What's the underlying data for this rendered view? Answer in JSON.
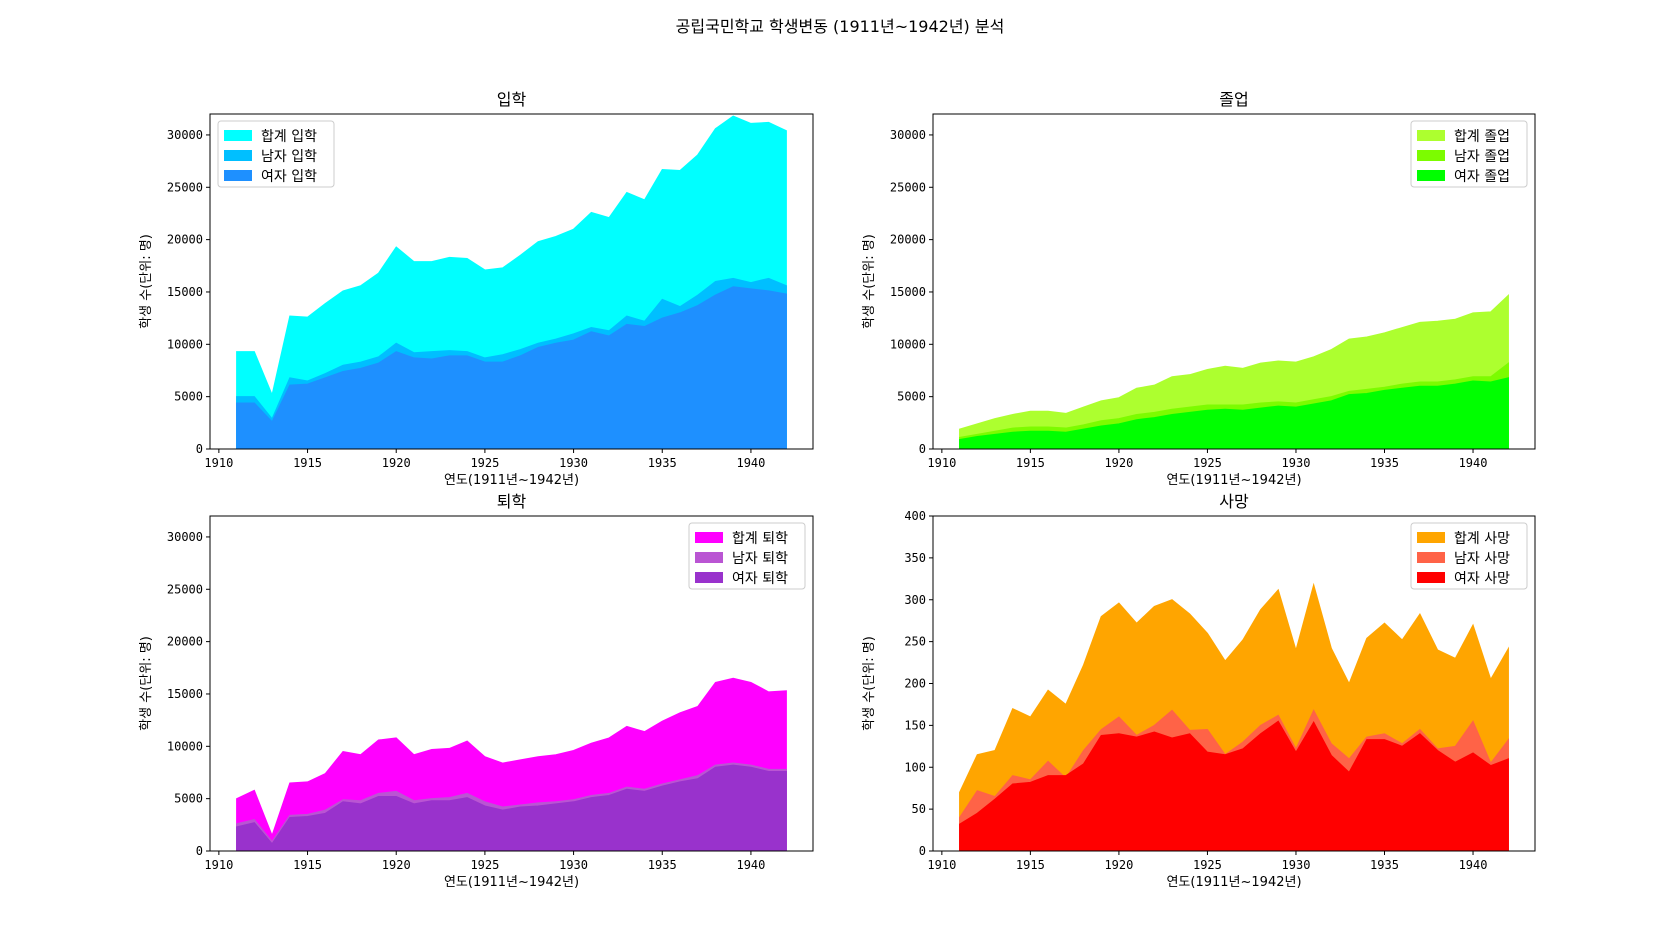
{
  "suptitle": "공립국민학교 학생변동 (1911년~1942년) 분석",
  "chart_data": [
    {
      "type": "area",
      "title": "입학",
      "xlabel": "연도(1911년~1942년)",
      "ylabel": "학생 수(단위: 명)",
      "xlim": [
        1909.5,
        1943.5
      ],
      "ylim": [
        0,
        32000
      ],
      "xticks": [
        1910,
        1915,
        1920,
        1925,
        1930,
        1935,
        1940
      ],
      "yticks": [
        0,
        5000,
        10000,
        15000,
        20000,
        25000,
        30000
      ],
      "legend_position": "upper-left",
      "x": [
        1911,
        1912,
        1913,
        1914,
        1915,
        1916,
        1917,
        1918,
        1919,
        1920,
        1921,
        1922,
        1923,
        1924,
        1925,
        1926,
        1927,
        1928,
        1929,
        1930,
        1931,
        1932,
        1933,
        1934,
        1935,
        1936,
        1937,
        1938,
        1939,
        1940,
        1941,
        1942
      ],
      "series": [
        {
          "name": "합계 입학",
          "color": "#00ffff",
          "values": [
            9300,
            9300,
            5200,
            12700,
            12600,
            13900,
            15100,
            15600,
            16800,
            19300,
            17900,
            17900,
            18300,
            18200,
            17100,
            17300,
            18500,
            19800,
            20300,
            21000,
            22600,
            22100,
            24500,
            23800,
            26700,
            26600,
            28100,
            30600,
            31800,
            31100,
            31200,
            30400
          ]
        },
        {
          "name": "남자 입학",
          "color": "#00bfff",
          "values": [
            5000,
            5000,
            2900,
            6800,
            6500,
            7200,
            8000,
            8300,
            8800,
            10100,
            9200,
            9300,
            9400,
            9300,
            8700,
            9000,
            9500,
            10100,
            10500,
            11000,
            11600,
            11300,
            12700,
            12200,
            14300,
            13600,
            14700,
            16000,
            16300,
            15900,
            16300,
            15600
          ]
        },
        {
          "name": "여자 입학",
          "color": "#1e90ff",
          "values": [
            4400,
            4400,
            2600,
            6100,
            6200,
            6800,
            7400,
            7700,
            8200,
            9300,
            8700,
            8600,
            8900,
            8900,
            8300,
            8300,
            8900,
            9700,
            10100,
            10400,
            11200,
            10800,
            11900,
            11700,
            12500,
            13000,
            13700,
            14700,
            15500,
            15300,
            15100,
            14800
          ]
        }
      ]
    },
    {
      "type": "area",
      "title": "졸업",
      "xlabel": "연도(1911년~1942년)",
      "ylabel": "학생 수(단위: 명)",
      "xlim": [
        1909.5,
        1943.5
      ],
      "ylim": [
        0,
        32000
      ],
      "xticks": [
        1910,
        1915,
        1920,
        1925,
        1930,
        1935,
        1940
      ],
      "yticks": [
        0,
        5000,
        10000,
        15000,
        20000,
        25000,
        30000
      ],
      "legend_position": "upper-right",
      "x": [
        1911,
        1912,
        1913,
        1914,
        1915,
        1916,
        1917,
        1918,
        1919,
        1920,
        1921,
        1922,
        1923,
        1924,
        1925,
        1926,
        1927,
        1928,
        1929,
        1930,
        1931,
        1932,
        1933,
        1934,
        1935,
        1936,
        1937,
        1938,
        1939,
        1940,
        1941,
        1942
      ],
      "series": [
        {
          "name": "합계 졸업",
          "color": "#adff2f",
          "values": [
            1900,
            2400,
            2900,
            3300,
            3600,
            3600,
            3400,
            4000,
            4600,
            4900,
            5800,
            6100,
            6900,
            7100,
            7600,
            7900,
            7700,
            8200,
            8400,
            8300,
            8800,
            9500,
            10500,
            10700,
            11100,
            11600,
            12100,
            12200,
            12400,
            13000,
            13100,
            14700
          ]
        },
        {
          "name": "남자 졸업",
          "color": "#7cfc00",
          "values": [
            1100,
            1400,
            1700,
            2000,
            2100,
            2100,
            2000,
            2300,
            2700,
            2900,
            3300,
            3500,
            3800,
            4000,
            4200,
            4200,
            4200,
            4400,
            4500,
            4400,
            4700,
            5000,
            5500,
            5700,
            5900,
            6200,
            6400,
            6400,
            6600,
            6900,
            6900,
            8200
          ]
        },
        {
          "name": "여자 졸업",
          "color": "#00ff00",
          "values": [
            900,
            1200,
            1400,
            1600,
            1700,
            1700,
            1600,
            1900,
            2200,
            2400,
            2800,
            3000,
            3300,
            3500,
            3700,
            3800,
            3700,
            3900,
            4100,
            4000,
            4300,
            4600,
            5200,
            5300,
            5600,
            5800,
            6000,
            6000,
            6200,
            6500,
            6400,
            6800
          ]
        }
      ]
    },
    {
      "type": "area",
      "title": "퇴학",
      "xlabel": "연도(1911년~1942년)",
      "ylabel": "학생 수(단위: 명)",
      "xlim": [
        1909.5,
        1943.5
      ],
      "ylim": [
        0,
        32000
      ],
      "xticks": [
        1910,
        1915,
        1920,
        1925,
        1930,
        1935,
        1940
      ],
      "yticks": [
        0,
        5000,
        10000,
        15000,
        20000,
        25000,
        30000
      ],
      "legend_position": "upper-right",
      "x": [
        1911,
        1912,
        1913,
        1914,
        1915,
        1916,
        1917,
        1918,
        1919,
        1920,
        1921,
        1922,
        1923,
        1924,
        1925,
        1926,
        1927,
        1928,
        1929,
        1930,
        1931,
        1932,
        1933,
        1934,
        1935,
        1936,
        1937,
        1938,
        1939,
        1940,
        1941,
        1942
      ],
      "series": [
        {
          "name": "합계 퇴학",
          "color": "#ff00ff",
          "values": [
            5000,
            5800,
            1500,
            6500,
            6600,
            7400,
            9500,
            9200,
            10600,
            10800,
            9200,
            9700,
            9800,
            10500,
            9000,
            8400,
            8700,
            9000,
            9200,
            9600,
            10300,
            10800,
            11900,
            11400,
            12400,
            13200,
            13800,
            16100,
            16500,
            16100,
            15200,
            15300
          ]
        },
        {
          "name": "남자 퇴학",
          "color": "#ba55d3",
          "values": [
            2600,
            3000,
            900,
            3400,
            3500,
            3900,
            4900,
            4800,
            5500,
            5700,
            4800,
            5000,
            5100,
            5500,
            4700,
            4200,
            4400,
            4600,
            4700,
            4900,
            5300,
            5500,
            6100,
            5900,
            6400,
            6800,
            7200,
            8200,
            8400,
            8200,
            7800,
            7800
          ]
        },
        {
          "name": "여자 퇴학",
          "color": "#9932cc",
          "values": [
            2300,
            2700,
            700,
            3200,
            3300,
            3600,
            4700,
            4500,
            5200,
            5200,
            4500,
            4800,
            4800,
            5100,
            4300,
            3900,
            4200,
            4300,
            4500,
            4700,
            5100,
            5300,
            5900,
            5700,
            6200,
            6600,
            6900,
            8000,
            8200,
            8000,
            7600,
            7600
          ]
        }
      ]
    },
    {
      "type": "area",
      "title": "사망",
      "xlabel": "연도(1911년~1942년)",
      "ylabel": "학생 수(단위: 명)",
      "xlim": [
        1909.5,
        1943.5
      ],
      "ylim": [
        0,
        400
      ],
      "xticks": [
        1910,
        1915,
        1920,
        1925,
        1930,
        1935,
        1940
      ],
      "yticks": [
        0,
        50,
        100,
        150,
        200,
        250,
        300,
        350,
        400
      ],
      "legend_position": "upper-right",
      "x": [
        1911,
        1912,
        1913,
        1914,
        1915,
        1916,
        1917,
        1918,
        1919,
        1920,
        1921,
        1922,
        1923,
        1924,
        1925,
        1926,
        1927,
        1928,
        1929,
        1930,
        1931,
        1932,
        1933,
        1934,
        1935,
        1936,
        1937,
        1938,
        1939,
        1940,
        1941,
        1942
      ],
      "series": [
        {
          "name": "합계 사망",
          "color": "#ffa500",
          "values": [
            70,
            115,
            120,
            170,
            160,
            192,
            175,
            222,
            280,
            296,
            272,
            292,
            300,
            283,
            260,
            227,
            252,
            288,
            312,
            240,
            318,
            242,
            200,
            254,
            272,
            252,
            283,
            240,
            230,
            270,
            205,
            242
          ]
        },
        {
          "name": "남자 사망",
          "color": "#ff6347",
          "values": [
            40,
            72,
            65,
            90,
            85,
            107,
            87,
            120,
            145,
            160,
            138,
            150,
            168,
            144,
            145,
            115,
            130,
            150,
            162,
            122,
            168,
            128,
            110,
            136,
            140,
            128,
            145,
            122,
            125,
            155,
            105,
            133
          ]
        },
        {
          "name": "여자 사망",
          "color": "#ff0000",
          "values": [
            32,
            45,
            62,
            80,
            82,
            90,
            90,
            104,
            138,
            140,
            136,
            142,
            135,
            140,
            118,
            115,
            122,
            140,
            155,
            118,
            154,
            114,
            94,
            133,
            133,
            125,
            140,
            120,
            106,
            117,
            102,
            110
          ]
        }
      ]
    }
  ]
}
